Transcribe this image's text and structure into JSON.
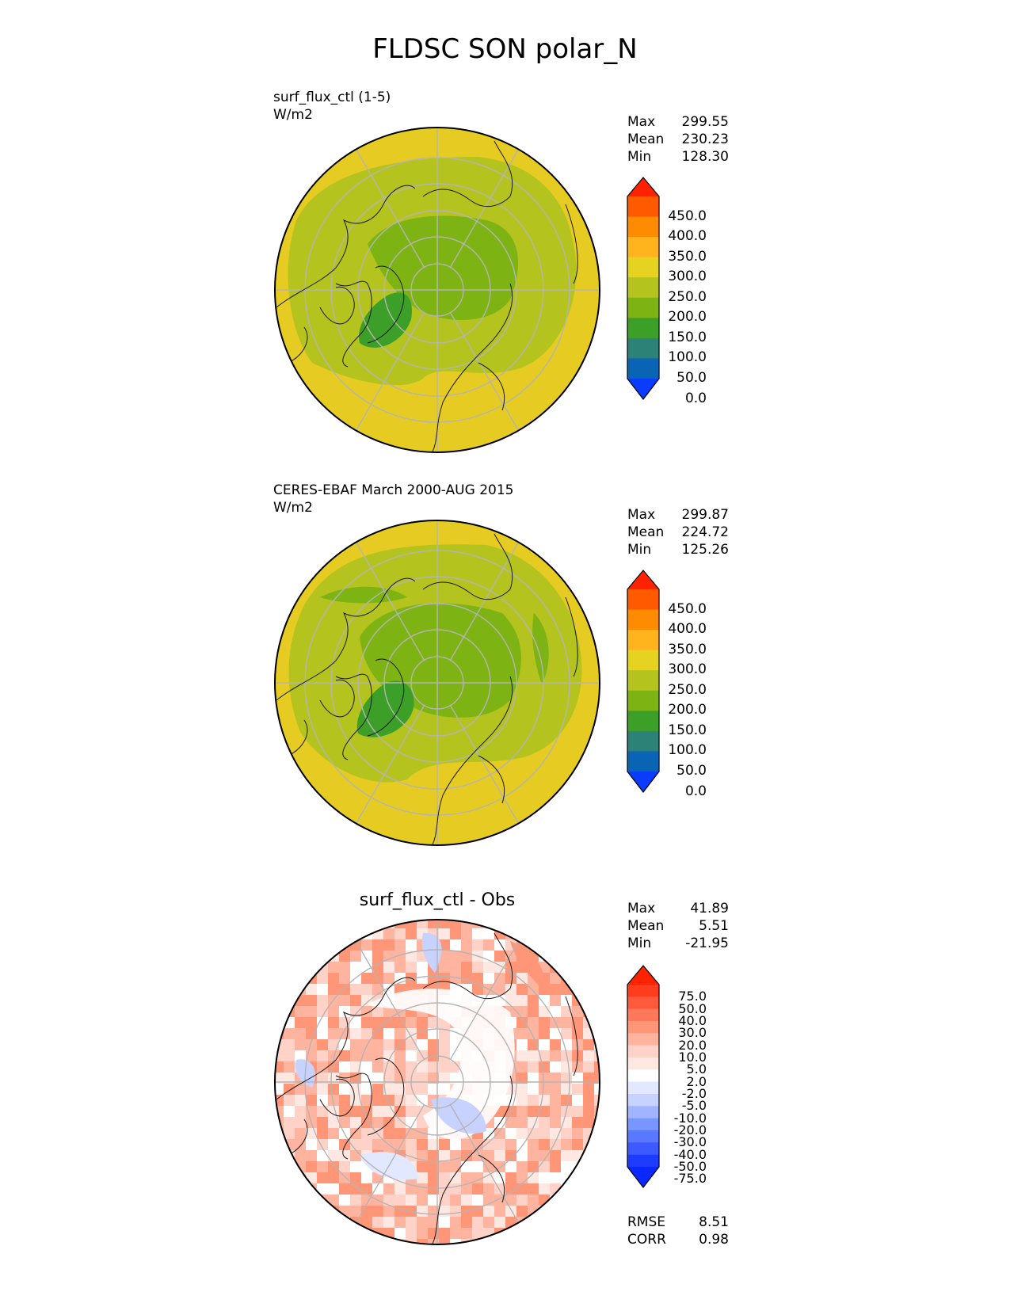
{
  "figure": {
    "title": "FLDSC SON polar_N"
  },
  "panels": [
    {
      "title": "surf_flux_ctl (1-5)",
      "units": "W/m2",
      "stats": {
        "max": "299.55",
        "mean": "230.23",
        "min": "128.30"
      },
      "stat_labels": {
        "max": "Max",
        "mean": "Mean",
        "min": "Min"
      },
      "colorbar": {
        "labels": [
          "450.0",
          "400.0",
          "350.0",
          "300.0",
          "250.0",
          "200.0",
          "150.0",
          "100.0",
          "50.0",
          "0.0"
        ],
        "colors": [
          "#ff2200",
          "#ff5a00",
          "#ff8c00",
          "#ffb41e",
          "#e6d220",
          "#b4c31e",
          "#7db414",
          "#3ca028",
          "#2d8278",
          "#0a64b4",
          "#0a3cff"
        ]
      }
    },
    {
      "title": "CERES-EBAF March 2000-AUG 2015",
      "units": "W/m2",
      "stats": {
        "max": "299.87",
        "mean": "224.72",
        "min": "125.26"
      },
      "stat_labels": {
        "max": "Max",
        "mean": "Mean",
        "min": "Min"
      },
      "colorbar": {
        "labels": [
          "450.0",
          "400.0",
          "350.0",
          "300.0",
          "250.0",
          "200.0",
          "150.0",
          "100.0",
          "50.0",
          "0.0"
        ],
        "colors": [
          "#ff2200",
          "#ff5a00",
          "#ff8c00",
          "#ffb41e",
          "#e6d220",
          "#b4c31e",
          "#7db414",
          "#3ca028",
          "#2d8278",
          "#0a64b4",
          "#0a3cff"
        ]
      }
    },
    {
      "title": "surf_flux_ctl - Obs",
      "stats": {
        "max": "41.89",
        "mean": "5.51",
        "min": "-21.95"
      },
      "stat_labels": {
        "max": "Max",
        "mean": "Mean",
        "min": "Min"
      },
      "metrics": {
        "rmse_label": "RMSE",
        "rmse": "8.51",
        "corr_label": "CORR",
        "corr": "0.98"
      },
      "colorbar": {
        "labels": [
          "75.0",
          "50.0",
          "40.0",
          "30.0",
          "20.0",
          "10.0",
          "5.0",
          "2.0",
          "-2.0",
          "-5.0",
          "-10.0",
          "-20.0",
          "-30.0",
          "-40.0",
          "-50.0",
          "-75.0"
        ],
        "colors": [
          "#ff2200",
          "#ff3c1e",
          "#ff5a3c",
          "#ff785a",
          "#ff9678",
          "#ffb4a0",
          "#ffd2c8",
          "#ffe8e2",
          "#ffffff",
          "#e2e8ff",
          "#c8d2ff",
          "#a0b4ff",
          "#7896ff",
          "#5a78ff",
          "#3c5aff",
          "#1e3cff",
          "#0a28ff"
        ]
      }
    }
  ]
}
